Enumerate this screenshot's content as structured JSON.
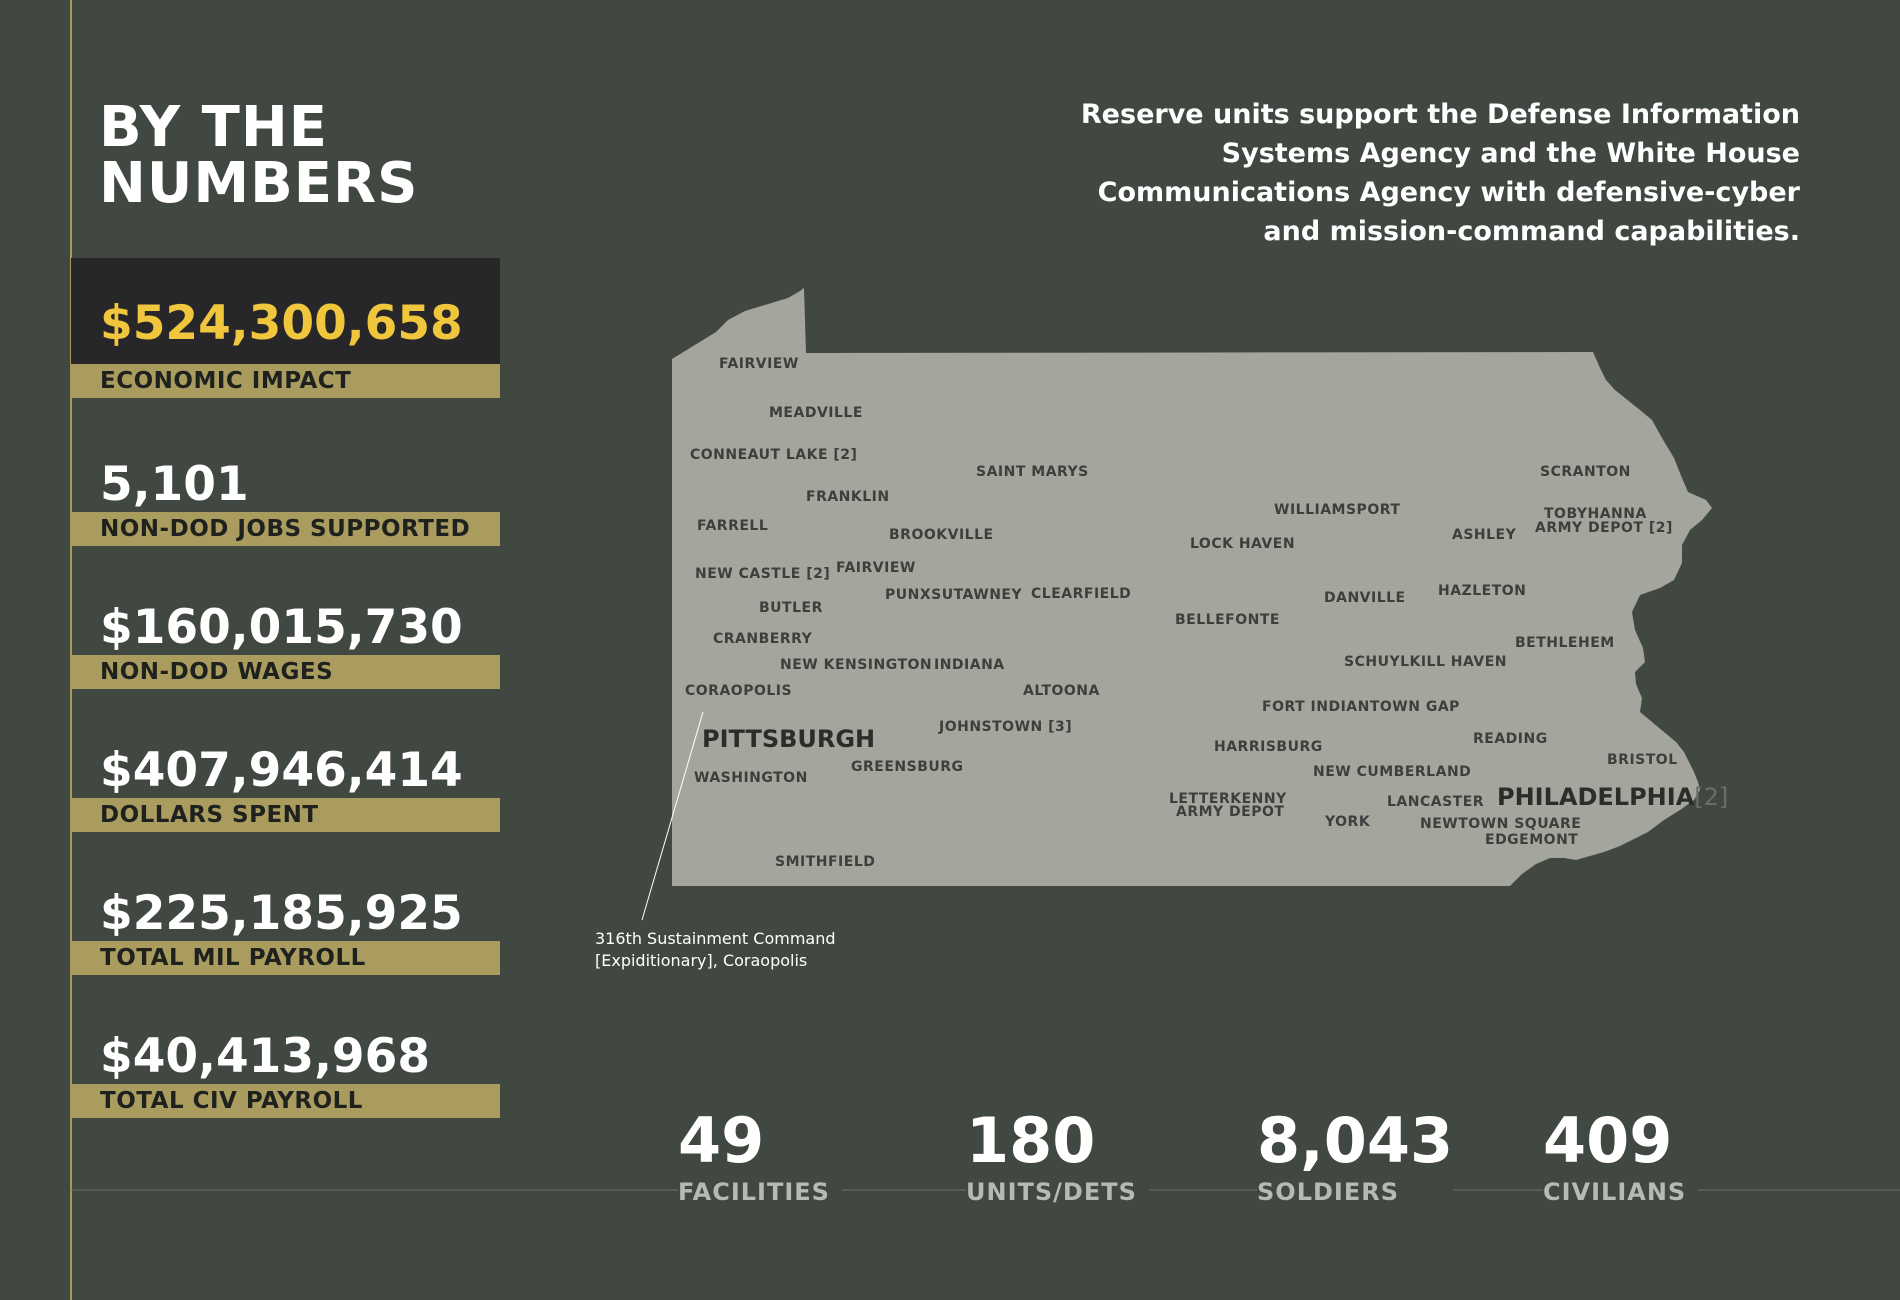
{
  "title": {
    "line1": "BY THE",
    "line2": "NUMBERS"
  },
  "stats": [
    {
      "value": "$524,300,658",
      "label": "ECONOMIC IMPACT"
    },
    {
      "value": "5,101",
      "label": "NON-DOD JOBS SUPPORTED"
    },
    {
      "value": "$160,015,730",
      "label": "NON-DOD WAGES"
    },
    {
      "value": "$407,946,414",
      "label": "DOLLARS SPENT"
    },
    {
      "value": "$225,185,925",
      "label": "TOTAL MIL PAYROLL"
    },
    {
      "value": "$40,413,968",
      "label": "TOTAL CIV PAYROLL"
    }
  ],
  "intro": {
    "line1": "Reserve units support the Defense Information",
    "line2": "Systems Agency and the White House",
    "line3": "Communications Agency with defensive-cyber",
    "line4": "and mission-command capabilities."
  },
  "map": {
    "cities": {
      "fairview_nw": "FAIRVIEW",
      "meadville": "MEADVILLE",
      "conneaut_lake": "CONNEAUT LAKE [2]",
      "saint_marys": "SAINT MARYS",
      "franklin": "FRANKLIN",
      "farrell": "FARRELL",
      "brookville": "BROOKVILLE",
      "new_castle": "NEW CASTLE [2]",
      "fairview": "FAIRVIEW",
      "punxsutawney": "PUNXSUTAWNEY",
      "clearfield": "CLEARFIELD",
      "butler": "BUTLER",
      "cranberry": "CRANBERRY",
      "new_kensington": "NEW KENSINGTON",
      "indiana": "INDIANA",
      "coraopolis": "CORAOPOLIS",
      "altoona": "ALTOONA",
      "pittsburgh": "PITTSBURGH",
      "johnstown": "JOHNSTOWN [3]",
      "washington": "WASHINGTON",
      "greensburg": "GREENSBURG",
      "smithfield": "SMITHFIELD",
      "williamsport": "WILLIAMSPORT",
      "lock_haven": "LOCK HAVEN",
      "bellefonte": "BELLEFONTE",
      "danville": "DANVILLE",
      "scranton": "SCRANTON",
      "tobyhanna_1": "TOBYHANNA",
      "tobyhanna_2": "ARMY DEPOT [2]",
      "ashley": "ASHLEY",
      "hazleton": "HAZLETON",
      "bethlehem": "BETHLEHEM",
      "schuylkill_haven": "SCHUYLKILL HAVEN",
      "fort_indiantown_gap": "FORT INDIANTOWN GAP",
      "harrisburg": "HARRISBURG",
      "reading": "READING",
      "new_cumberland": "NEW CUMBERLAND",
      "bristol": "BRISTOL",
      "letterkenny_1": "LETTERKENNY",
      "letterkenny_2": "ARMY DEPOT",
      "lancaster": "LANCASTER",
      "york": "YORK",
      "philadelphia": "PHILADELPHIA",
      "philadelphia_count": "[2]",
      "newtown_square": "NEWTOWN SQUARE",
      "edgemont": "EDGEMONT"
    },
    "callout": {
      "line1": "316th Sustainment Command",
      "line2": "[Expiditionary], Coraopolis"
    }
  },
  "counts": [
    {
      "value": "49",
      "label": "FACILITIES"
    },
    {
      "value": "180",
      "label": "UNITS/DETS"
    },
    {
      "value": "8,043",
      "label": "SOLDIERS"
    },
    {
      "value": "409",
      "label": "CIVILIANS"
    }
  ],
  "colors": {
    "background": "#414741",
    "accent_gold": "#aa9c5f",
    "highlight_yellow": "#f0c63c",
    "map_fill": "#a4a69d"
  }
}
